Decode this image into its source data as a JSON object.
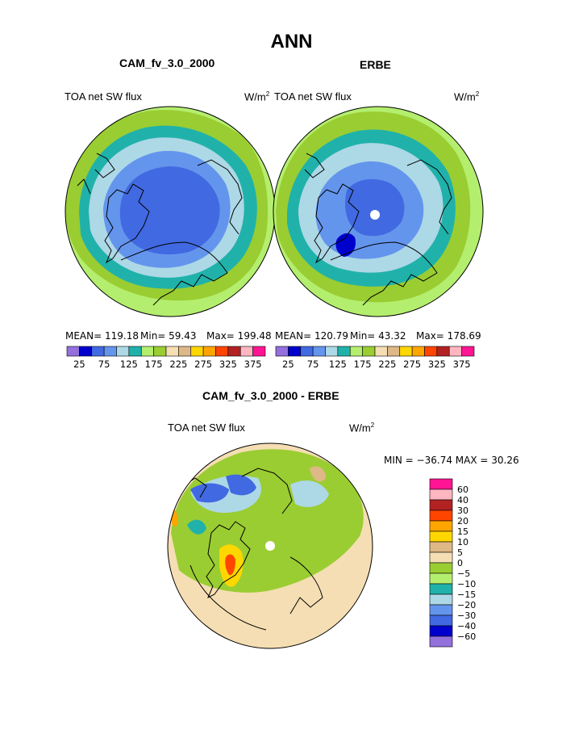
{
  "page": {
    "title": "ANN"
  },
  "colors": {
    "c1": "#9370db",
    "c2": "#0000cd",
    "c3": "#4169e1",
    "c4": "#6495ed",
    "c5": "#add8e6",
    "c6": "#20b2aa",
    "c7": "#b4ee6e",
    "c8": "#9acd32",
    "c9": "#f5deb3",
    "c10": "#deb887",
    "c11": "#ffd700",
    "c12": "#ffa500",
    "c13": "#ff4500",
    "c14": "#b22222",
    "c15": "#ffb6c1",
    "c16": "#ff1493"
  },
  "panels": [
    {
      "case_name": "CAM_fv_3.0_2000",
      "variable": "TOA net SW flux",
      "units_base": "W/m",
      "units_exp": "2",
      "mean": "MEAN=  119.18",
      "min": "Min=   59.43",
      "max": "Max=  199.48"
    },
    {
      "case_name": "ERBE",
      "variable": "TOA net SW flux",
      "units_base": "W/m",
      "units_exp": "2",
      "mean": "MEAN=  120.79",
      "min": "Min=   43.32",
      "max": "Max=  178.69"
    }
  ],
  "diff_panel": {
    "title": "CAM_fv_3.0_2000 - ERBE",
    "variable": "TOA net SW flux",
    "units_base": "W/m",
    "units_exp": "2",
    "minmax": "MIN = −36.74  MAX =   30.26"
  },
  "chart_data": [
    {
      "type": "heatmap",
      "projection": "north-polar-stereographic",
      "title": "CAM_fv_3.0_2000",
      "left_label": "TOA net SW flux",
      "right_label": "W/m2",
      "stats": {
        "mean": 119.18,
        "min": 59.43,
        "max": 199.48
      },
      "colorbar": {
        "orientation": "horizontal",
        "levels": [
          25,
          50,
          75,
          100,
          125,
          150,
          175,
          200,
          225,
          250,
          275,
          300,
          325,
          350,
          375
        ],
        "tick_labels": [
          "25",
          "75",
          "125",
          "175",
          "225",
          "275",
          "325",
          "375"
        ]
      }
    },
    {
      "type": "heatmap",
      "projection": "north-polar-stereographic",
      "title": "ERBE",
      "left_label": "TOA net SW flux",
      "right_label": "W/m2",
      "stats": {
        "mean": 120.79,
        "min": 43.32,
        "max": 178.69
      },
      "colorbar": {
        "orientation": "horizontal",
        "levels": [
          25,
          50,
          75,
          100,
          125,
          150,
          175,
          200,
          225,
          250,
          275,
          300,
          325,
          350,
          375
        ],
        "tick_labels": [
          "25",
          "75",
          "125",
          "175",
          "225",
          "275",
          "325",
          "375"
        ]
      }
    },
    {
      "type": "heatmap",
      "projection": "north-polar-stereographic",
      "title": "CAM_fv_3.0_2000 - ERBE",
      "left_label": "TOA net SW flux",
      "right_label": "W/m2",
      "stats": {
        "min": -36.74,
        "max": 30.26
      },
      "colorbar": {
        "orientation": "vertical",
        "levels": [
          60,
          40,
          30,
          20,
          15,
          10,
          5,
          0,
          -5,
          -10,
          -15,
          -20,
          -30,
          -40,
          -60
        ],
        "tick_labels": [
          "60",
          "40",
          "30",
          "20",
          "15",
          "10",
          "5",
          "0",
          "−5",
          "−10",
          "−15",
          "−20",
          "−30",
          "−40",
          "−60"
        ]
      }
    }
  ]
}
